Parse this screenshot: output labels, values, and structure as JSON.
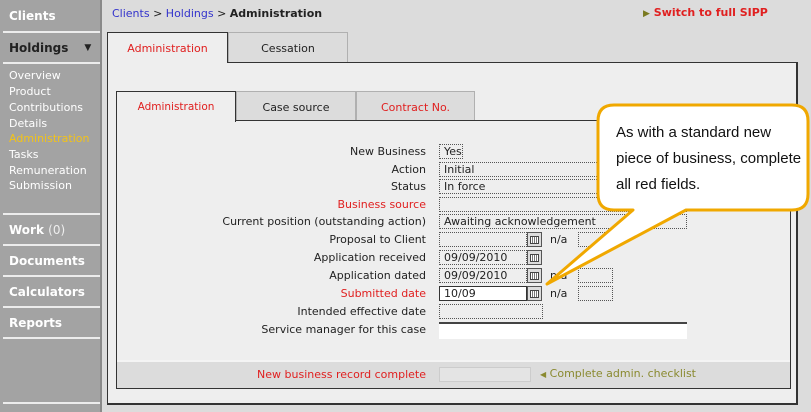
{
  "sidebar": {
    "clients": "Clients",
    "holdings": "Holdings",
    "submenu": [
      "Overview",
      "Product",
      "Contributions",
      "Details",
      "Administration",
      "Tasks",
      "Remuneration",
      "Submission"
    ],
    "active_submenu": "Administration",
    "work": "Work",
    "work_count": "(0)",
    "documents": "Documents",
    "calculators": "Calculators",
    "reports": "Reports"
  },
  "breadcrumb": {
    "clients": "Clients",
    "sep": ">",
    "holdings": "Holdings",
    "current": "Administration"
  },
  "switch_link": "Switch to full SIPP",
  "outer_tabs": [
    "Administration",
    "Cessation"
  ],
  "inner_tabs": [
    "Administration",
    "Case source",
    "Contract No."
  ],
  "form": {
    "new_business": {
      "label": "New Business",
      "value": "Yes"
    },
    "action": {
      "label": "Action",
      "value": "Initial"
    },
    "status": {
      "label": "Status",
      "value": "In force"
    },
    "business_source": {
      "label": "Business source",
      "value": ""
    },
    "current_position": {
      "label": "Current position (outstanding action)",
      "value": "Awaiting acknowledgement"
    },
    "proposal": {
      "label": "Proposal to Client",
      "value": ""
    },
    "app_received": {
      "label": "Application received",
      "value": "09/09/2010"
    },
    "app_dated": {
      "label": "Application dated",
      "value": "09/09/2010"
    },
    "submitted": {
      "label": "Submitted date",
      "value": "10/09"
    },
    "intended": {
      "label": "Intended effective date",
      "value": ""
    },
    "service_manager": {
      "label": "Service manager for this case",
      "value": ""
    },
    "na": "n/a"
  },
  "footer": {
    "label": "New business record complete",
    "checklist": "Complete admin. checklist"
  },
  "callout": {
    "text": "As with a standard new piece of business, complete all red fields."
  },
  "colors": {
    "required": "#e02020",
    "active_nav": "#f3c318",
    "callout_border": "#f0a800"
  }
}
